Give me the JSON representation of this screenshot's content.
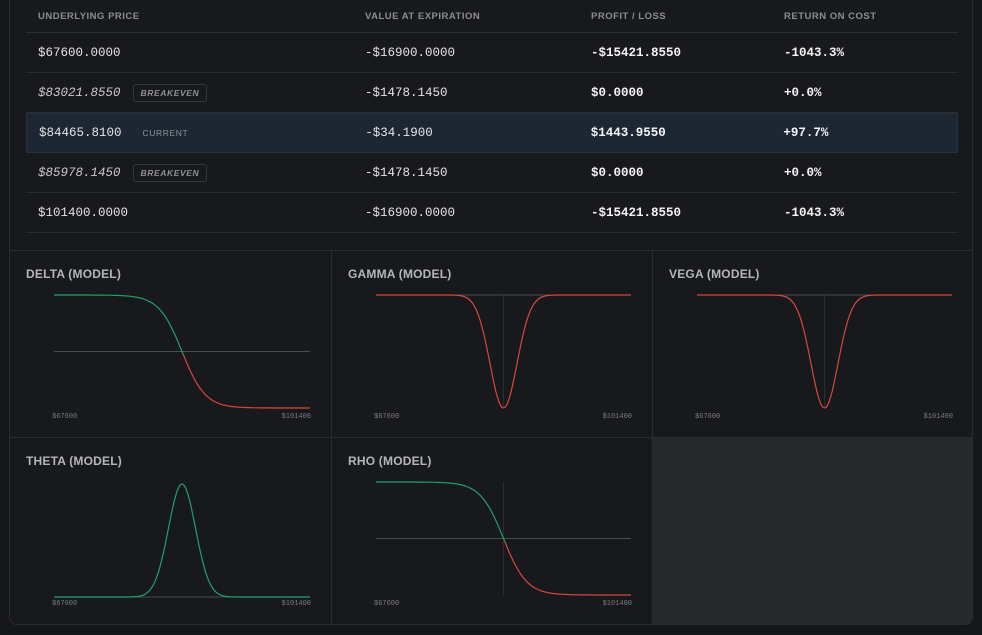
{
  "table": {
    "headers": [
      "UNDERLYING PRICE",
      "VALUE AT EXPIRATION",
      "PROFIT / LOSS",
      "RETURN ON COST"
    ],
    "rows": [
      {
        "price": "$67600.0000",
        "tag": "",
        "value": "-$16900.0000",
        "pl": "-$15421.8550",
        "ret": "-1043.3%"
      },
      {
        "price": "$83021.8550",
        "tag": "BREAKEVEN",
        "value": "-$1478.1450",
        "pl": "$0.0000",
        "ret": "+0.0%"
      },
      {
        "price": "$84465.8100",
        "tag": "CURRENT",
        "value": "-$34.1900",
        "pl": "$1443.9550",
        "ret": "+97.7%"
      },
      {
        "price": "$85978.1450",
        "tag": "BREAKEVEN",
        "value": "-$1478.1450",
        "pl": "$0.0000",
        "ret": "+0.0%"
      },
      {
        "price": "$101400.0000",
        "tag": "",
        "value": "-$16900.0000",
        "pl": "-$15421.8550",
        "ret": "-1043.3%"
      }
    ]
  },
  "colors": {
    "positive": "#22a06b",
    "negative": "#d9473b",
    "axis": "#4a4c52"
  },
  "greeks": [
    {
      "title": "DELTA (MODEL)",
      "kind": "delta",
      "x_min": "$67600",
      "x_max": "$101400"
    },
    {
      "title": "GAMMA (MODEL)",
      "kind": "gamma",
      "x_min": "$67600",
      "x_max": "$101400"
    },
    {
      "title": "VEGA (MODEL)",
      "kind": "vega",
      "x_min": "$67600",
      "x_max": "$101400"
    },
    {
      "title": "THETA (MODEL)",
      "kind": "theta",
      "x_min": "$67600",
      "x_max": "$101400"
    },
    {
      "title": "RHO (MODEL)",
      "kind": "rho",
      "x_min": "$67600",
      "x_max": "$101400"
    }
  ]
}
